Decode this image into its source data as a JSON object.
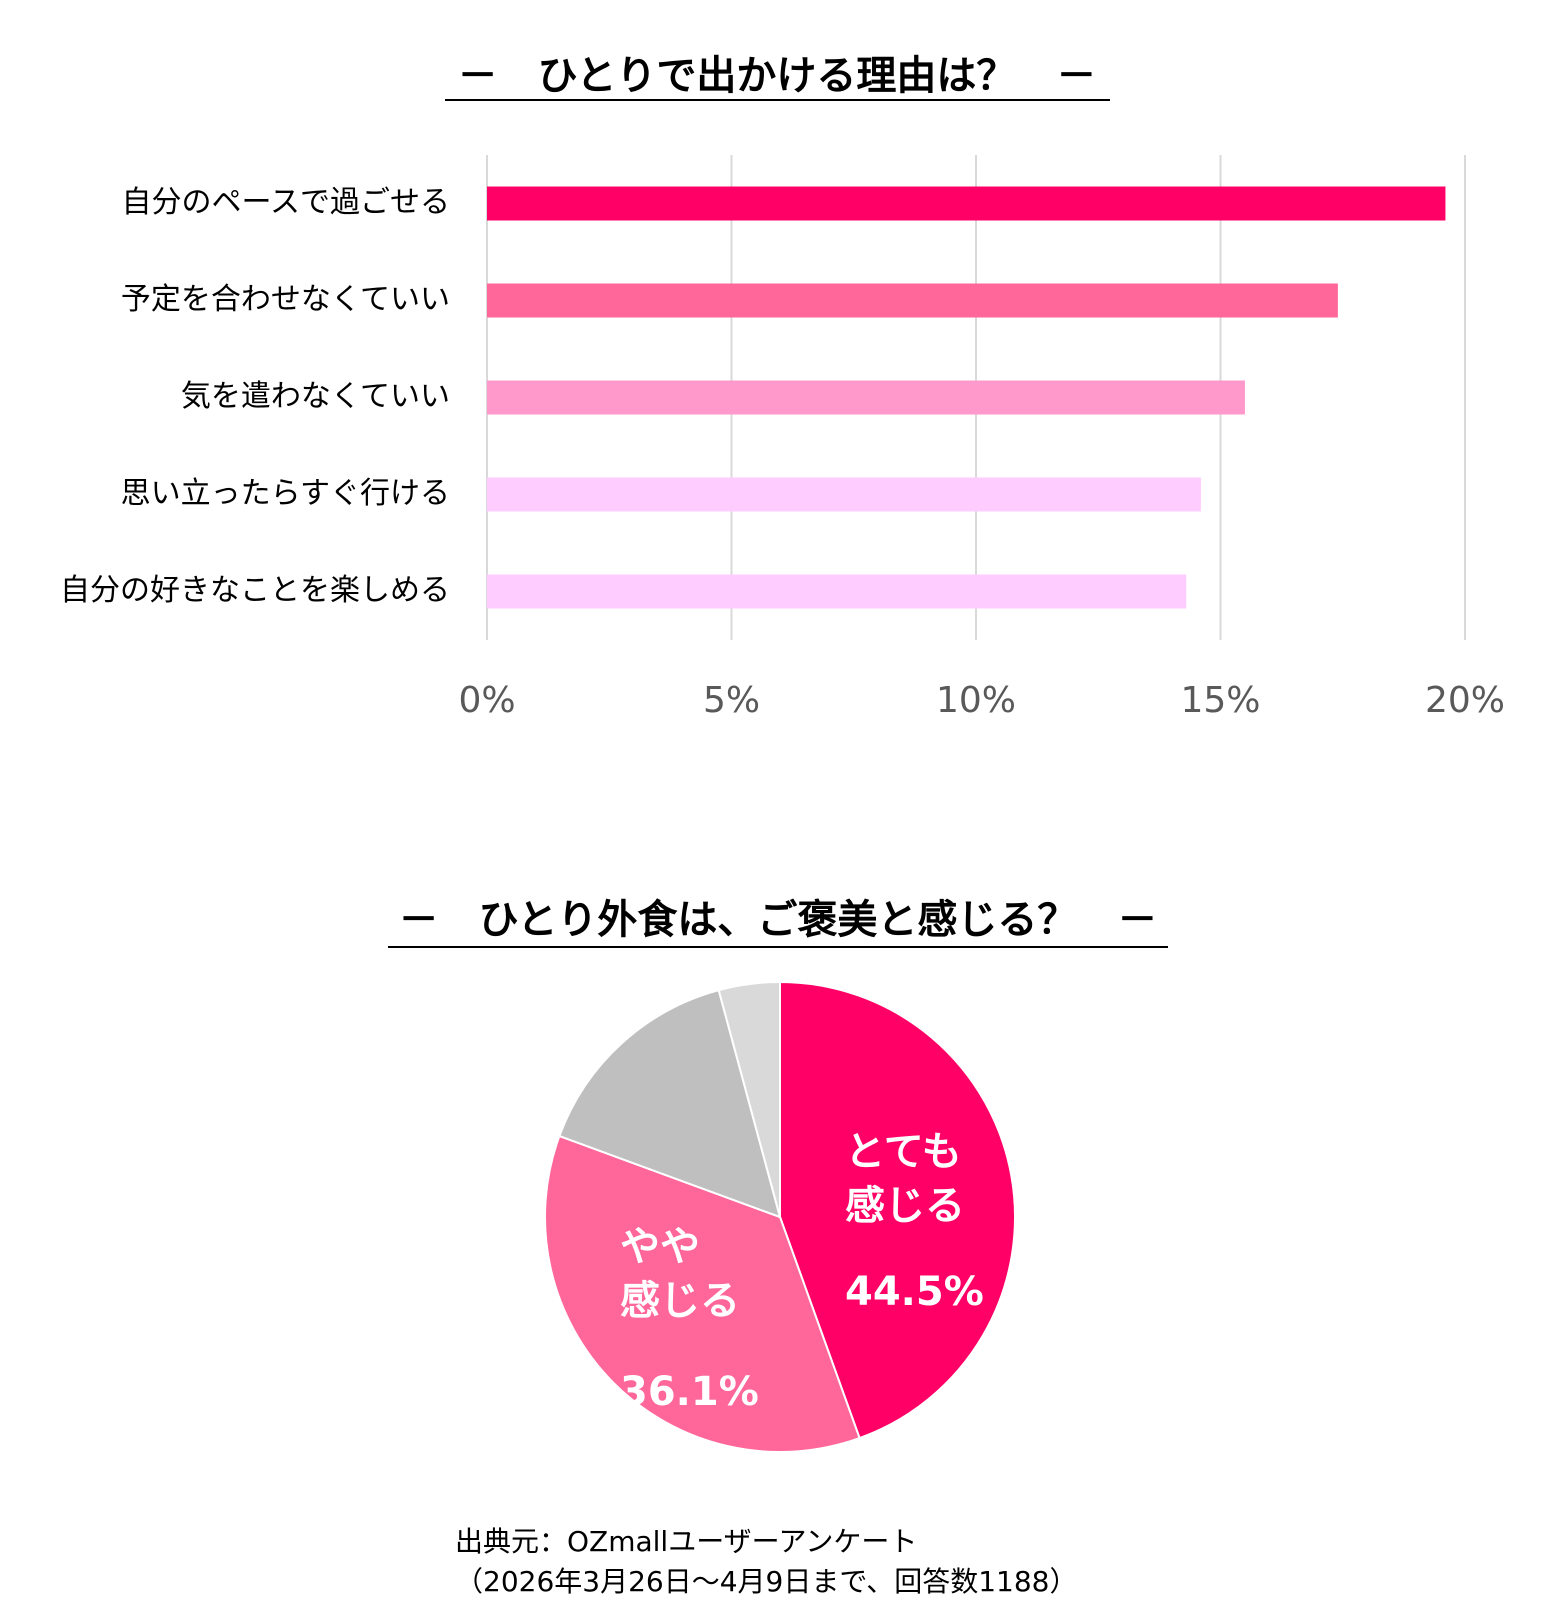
{
  "chart_data": [
    {
      "type": "bar",
      "orientation": "horizontal",
      "title": "－　ひとりで出かける理由は？　－",
      "categories": [
        "自分のペースで過ごせる",
        "予定を合わせなくていい",
        "気を遣わなくていい",
        "思い立ったらすぐ行ける",
        "自分の好きなことを楽しめる"
      ],
      "values": [
        19.6,
        17.4,
        15.5,
        14.6,
        14.3
      ],
      "colors": [
        "#ff0066",
        "#ff6699",
        "#ff99cc",
        "#ffccff",
        "#ffccff"
      ],
      "xlim": [
        0,
        20
      ],
      "xticks": [
        {
          "value": 0,
          "label": "0%"
        },
        {
          "value": 5,
          "label": "5%"
        },
        {
          "value": 10,
          "label": "10%"
        },
        {
          "value": 15,
          "label": "15%"
        },
        {
          "value": 20,
          "label": "20%"
        }
      ],
      "grid": true
    },
    {
      "type": "pie",
      "title": "－　ひとり外食は、ご褒美と感じる？　－",
      "categories": [
        "とても\n感じる",
        "やや\n感じる",
        null,
        null
      ],
      "values": [
        44.5,
        36.1,
        15.2,
        4.2
      ],
      "value_labels": [
        "44.5%",
        "36.1%",
        null,
        null
      ],
      "colors": [
        "#ff0066",
        "#ff6699",
        "#bfbfbf",
        "#d9d9d9"
      ]
    }
  ],
  "source": [
    "出典元：OZmallユーザーアンケート",
    "（2026年3月26日～4月9日まで、回答数1188）"
  ]
}
